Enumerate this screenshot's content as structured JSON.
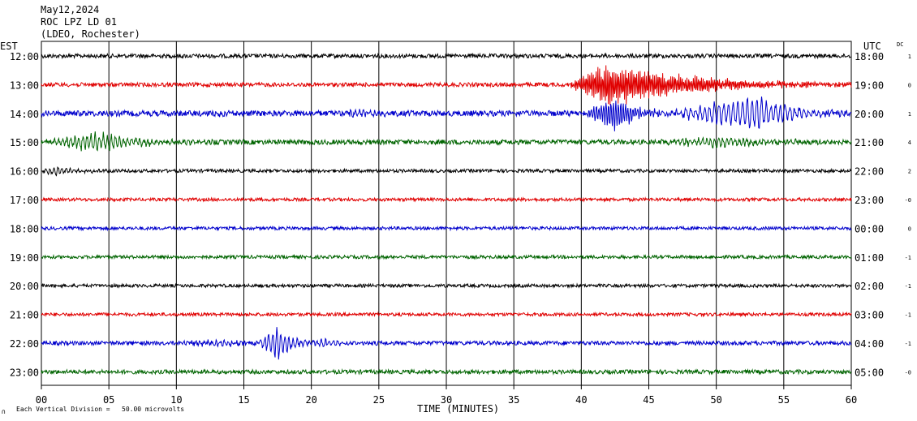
{
  "header": {
    "date": "May12,2024",
    "station": "ROC LPZ LD 01",
    "network": "(LDEO, Rochester)"
  },
  "left_tz": "EST",
  "right_tz": "UTC",
  "dc_label": "DC",
  "footer": {
    "scale_icon": "∩",
    "scale_text": "Each Vertical Division =   50.00 microvolts"
  },
  "colors": {
    "black": "#000000",
    "red": "#e00000",
    "blue": "#0000cc",
    "green": "#006400"
  },
  "chart_data": {
    "type": "line",
    "subtype": "helicorder",
    "xlabel": "TIME (MINUTES)",
    "xlim": [
      0,
      60
    ],
    "x_ticks": [
      "00",
      "05",
      "10",
      "15",
      "20",
      "25",
      "30",
      "35",
      "40",
      "45",
      "50",
      "55",
      "60"
    ],
    "rows": [
      {
        "est": "12:00",
        "utc": "18:00",
        "dc": "1",
        "color": "black",
        "amp": 2.5,
        "events": []
      },
      {
        "est": "13:00",
        "utc": "19:00",
        "dc": "0",
        "color": "red",
        "amp": 2.5,
        "events": [
          {
            "start": 39,
            "peak": 42,
            "end": 60,
            "amp": 30,
            "period": 0.12
          }
        ]
      },
      {
        "est": "14:00",
        "utc": "20:00",
        "dc": "1",
        "color": "blue",
        "amp": 3.5,
        "events": [
          {
            "start": 13,
            "peak": 13.5,
            "end": 14.5,
            "amp": 5,
            "period": 0.3
          },
          {
            "start": 22,
            "peak": 23.5,
            "end": 28,
            "amp": 5,
            "period": 0.3
          },
          {
            "start": 40,
            "peak": 42.5,
            "end": 47,
            "amp": 22,
            "period": 0.18
          },
          {
            "start": 46,
            "peak": 53,
            "end": 60,
            "amp": 24,
            "period": 0.35
          }
        ]
      },
      {
        "est": "15:00",
        "utc": "21:00",
        "dc": "4",
        "color": "green",
        "amp": 3,
        "events": [
          {
            "start": 0,
            "peak": 4,
            "end": 13,
            "amp": 13,
            "period": 0.3
          },
          {
            "start": 45,
            "peak": 50,
            "end": 60,
            "amp": 7,
            "period": 0.3
          }
        ]
      },
      {
        "est": "16:00",
        "utc": "22:00",
        "dc": "2",
        "color": "black",
        "amp": 2,
        "events": [
          {
            "start": 0,
            "peak": 1,
            "end": 6,
            "amp": 7,
            "period": 0.3
          }
        ]
      },
      {
        "est": "17:00",
        "utc": "23:00",
        "dc": "-0",
        "color": "red",
        "amp": 2,
        "events": []
      },
      {
        "est": "18:00",
        "utc": "00:00",
        "dc": "0",
        "color": "blue",
        "amp": 2,
        "events": []
      },
      {
        "est": "19:00",
        "utc": "01:00",
        "dc": "-1",
        "color": "green",
        "amp": 2,
        "events": []
      },
      {
        "est": "20:00",
        "utc": "02:00",
        "dc": "-1",
        "color": "black",
        "amp": 2,
        "events": []
      },
      {
        "est": "21:00",
        "utc": "03:00",
        "dc": "-1",
        "color": "red",
        "amp": 2,
        "events": []
      },
      {
        "est": "22:00",
        "utc": "04:00",
        "dc": "-1",
        "color": "blue",
        "amp": 2.5,
        "events": [
          {
            "start": 9,
            "peak": 14,
            "end": 16,
            "amp": 4,
            "period": 0.3
          },
          {
            "start": 16,
            "peak": 17.5,
            "end": 20,
            "amp": 24,
            "period": 0.3
          },
          {
            "start": 19.5,
            "peak": 21,
            "end": 25,
            "amp": 6,
            "period": 0.3
          }
        ]
      },
      {
        "est": "23:00",
        "utc": "05:00",
        "dc": "-0",
        "color": "green",
        "amp": 2.5,
        "events": []
      }
    ]
  }
}
